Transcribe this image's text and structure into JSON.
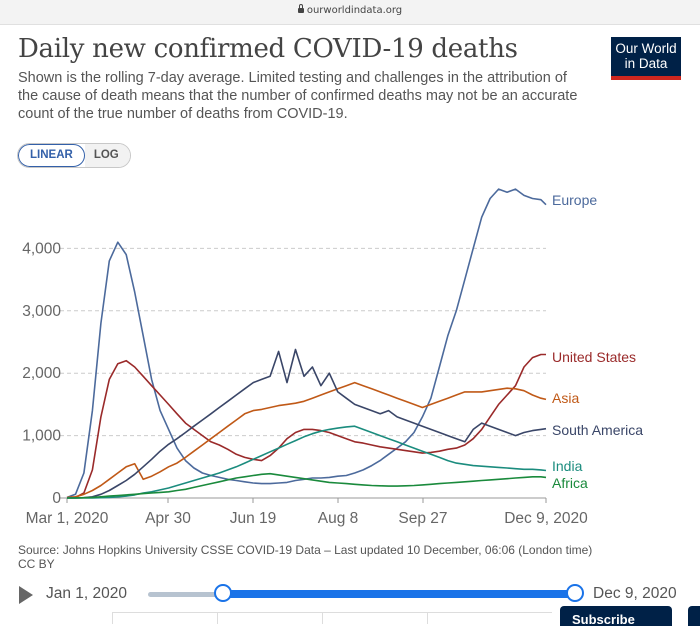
{
  "browser": {
    "url": "ourworldindata.org"
  },
  "header": {
    "title": "Daily new confirmed COVID-19 deaths",
    "subtitle": "Shown is the rolling 7-day average. Limited testing and challenges in the attribution of the cause of death means that the number of confirmed deaths may not be an accurate count of the true number of deaths from COVID-19.",
    "logo_line1": "Our World",
    "logo_line2": "in Data"
  },
  "scale_toggle": {
    "linear": "LINEAR",
    "log": "LOG",
    "selected": "LINEAR"
  },
  "footer": {
    "source": "Source: Johns Hopkins University CSSE COVID-19 Data – Last updated 10 December, 06:06 (London time)",
    "license": "CC BY"
  },
  "timeline": {
    "start": "Jan 1, 2020",
    "end": "Dec 9, 2020",
    "subscribe": "Subscribe"
  },
  "chart_data": {
    "type": "line",
    "title": "Daily new confirmed COVID-19 deaths",
    "x_tick_labels": [
      "Mar 1, 2020",
      "Apr 30",
      "Jun 19",
      "Aug 8",
      "Sep 27",
      "Dec 9, 2020"
    ],
    "y_tick_labels": [
      "0",
      "1,000",
      "2,000",
      "3,000",
      "4,000"
    ],
    "ylim": [
      0,
      5000
    ],
    "xlim_days_from_mar1": [
      0,
      283
    ],
    "grid": "horizontal dashed",
    "x_days_from_mar1": [
      0,
      5,
      10,
      15,
      20,
      25,
      30,
      35,
      40,
      45,
      50,
      55,
      60,
      65,
      70,
      75,
      80,
      85,
      90,
      95,
      100,
      105,
      110,
      115,
      120,
      125,
      130,
      135,
      140,
      145,
      150,
      155,
      160,
      165,
      170,
      175,
      180,
      185,
      190,
      195,
      200,
      205,
      210,
      215,
      220,
      225,
      230,
      235,
      240,
      245,
      250,
      255,
      260,
      265,
      270,
      275,
      280,
      283
    ],
    "series": [
      {
        "name": "Europe",
        "color": "#4c6a9c",
        "values": [
          10,
          60,
          400,
          1400,
          2800,
          3800,
          4100,
          3900,
          3300,
          2600,
          1900,
          1400,
          1100,
          800,
          600,
          480,
          400,
          360,
          330,
          300,
          280,
          260,
          240,
          230,
          230,
          240,
          250,
          280,
          300,
          320,
          320,
          330,
          350,
          360,
          400,
          450,
          520,
          600,
          700,
          800,
          900,
          1050,
          1300,
          1600,
          2100,
          2600,
          3000,
          3500,
          4000,
          4500,
          4800,
          4950,
          4900,
          4950,
          4850,
          4800,
          4780,
          4700
        ]
      },
      {
        "name": "United States",
        "color": "#9a2a2a",
        "values": [
          5,
          10,
          80,
          450,
          1300,
          1900,
          2150,
          2200,
          2100,
          1950,
          1800,
          1650,
          1500,
          1350,
          1200,
          1100,
          1000,
          900,
          850,
          780,
          700,
          650,
          620,
          600,
          680,
          800,
          950,
          1050,
          1100,
          1100,
          1080,
          1050,
          1000,
          950,
          900,
          880,
          850,
          820,
          800,
          780,
          760,
          740,
          720,
          730,
          750,
          780,
          800,
          850,
          950,
          1100,
          1300,
          1500,
          1650,
          1800,
          2100,
          2250,
          2300,
          2300
        ]
      },
      {
        "name": "Asia",
        "color": "#c05917",
        "values": [
          10,
          20,
          60,
          120,
          200,
          300,
          400,
          500,
          550,
          300,
          350,
          420,
          500,
          560,
          650,
          750,
          850,
          950,
          1050,
          1150,
          1250,
          1350,
          1400,
          1420,
          1450,
          1480,
          1500,
          1520,
          1550,
          1600,
          1650,
          1700,
          1750,
          1800,
          1850,
          1800,
          1750,
          1700,
          1650,
          1600,
          1550,
          1500,
          1450,
          1500,
          1550,
          1600,
          1650,
          1700,
          1700,
          1700,
          1720,
          1740,
          1760,
          1750,
          1720,
          1650,
          1600,
          1580
        ]
      },
      {
        "name": "South America",
        "color": "#3a4668",
        "values": [
          0,
          2,
          5,
          20,
          60,
          120,
          200,
          280,
          380,
          500,
          620,
          750,
          860,
          950,
          1050,
          1150,
          1250,
          1350,
          1450,
          1550,
          1650,
          1750,
          1850,
          1900,
          1950,
          2350,
          1850,
          2380,
          1950,
          2100,
          1800,
          2000,
          1700,
          1600,
          1500,
          1450,
          1400,
          1350,
          1400,
          1300,
          1250,
          1200,
          1150,
          1100,
          1050,
          1000,
          950,
          900,
          1100,
          1200,
          1150,
          1100,
          1050,
          1000,
          1050,
          1080,
          1100,
          1110
        ]
      },
      {
        "name": "India",
        "color": "#1b8c7e",
        "values": [
          0,
          0,
          1,
          2,
          5,
          10,
          20,
          30,
          50,
          80,
          100,
          130,
          160,
          200,
          240,
          280,
          320,
          360,
          400,
          450,
          500,
          560,
          620,
          680,
          740,
          800,
          860,
          920,
          980,
          1030,
          1070,
          1100,
          1120,
          1140,
          1150,
          1100,
          1050,
          1000,
          950,
          900,
          850,
          800,
          750,
          700,
          650,
          600,
          560,
          540,
          520,
          510,
          500,
          490,
          480,
          470,
          460,
          460,
          450,
          440
        ]
      },
      {
        "name": "Africa",
        "color": "#1a8a3c",
        "values": [
          0,
          2,
          5,
          10,
          20,
          30,
          40,
          50,
          60,
          70,
          80,
          90,
          100,
          120,
          140,
          170,
          200,
          230,
          260,
          290,
          320,
          340,
          360,
          380,
          390,
          370,
          350,
          330,
          310,
          290,
          270,
          250,
          240,
          230,
          220,
          210,
          200,
          195,
          190,
          190,
          195,
          200,
          210,
          220,
          230,
          240,
          250,
          260,
          270,
          280,
          290,
          300,
          310,
          320,
          330,
          340,
          340,
          330
        ]
      }
    ]
  }
}
